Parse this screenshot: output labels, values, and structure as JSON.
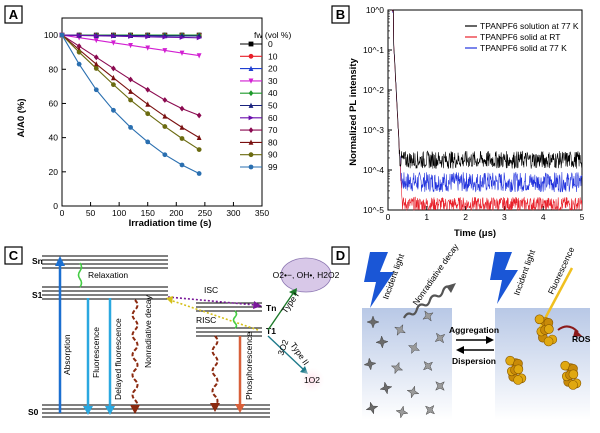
{
  "figure": {
    "panelA": {
      "label": "A",
      "chart_data": {
        "type": "line",
        "xlabel": "Irradiation time (s)",
        "ylabel": "A/A0 (%)",
        "xlim": [
          0,
          350
        ],
        "ylim": [
          0,
          110
        ],
        "xticks": [
          0,
          50,
          100,
          150,
          200,
          250,
          300,
          350
        ],
        "yticks": [
          0,
          20,
          40,
          60,
          80,
          100
        ],
        "legend_title": "fw (vol %)",
        "legend_position": "top-right",
        "x": [
          0,
          30,
          60,
          90,
          120,
          150,
          180,
          210,
          240
        ],
        "series": [
          {
            "name": "0",
            "color": "#000000",
            "marker": "square",
            "values": [
              100,
              100,
              100,
              100,
              100,
              100,
              100,
              100,
              100
            ]
          },
          {
            "name": "10",
            "color": "#e8202a",
            "marker": "circle",
            "values": [
              100,
              100,
              100,
              100,
              100,
              100,
              100,
              100,
              100
            ]
          },
          {
            "name": "20",
            "color": "#1f3fd1",
            "marker": "triangle",
            "values": [
              100,
              99.9,
              99.8,
              99.8,
              99.7,
              99.7,
              99.6,
              99.6,
              99.5
            ]
          },
          {
            "name": "30",
            "color": "#d21fd2",
            "marker": "tridown",
            "values": [
              100,
              98.5,
              97,
              95.5,
              94,
              92.5,
              91,
              89.5,
              88
            ]
          },
          {
            "name": "40",
            "color": "#1e9a2b",
            "marker": "diamond",
            "values": [
              100,
              100,
              100,
              100,
              100,
              100,
              100,
              100,
              100
            ]
          },
          {
            "name": "50",
            "color": "#1a237e",
            "marker": "triangle",
            "values": [
              100,
              99.9,
              99.8,
              99.8,
              99.7,
              99.7,
              99.6,
              99.6,
              99.5
            ]
          },
          {
            "name": "60",
            "color": "#6a0dad",
            "marker": "triright",
            "values": [
              100,
              99.8,
              99.6,
              99.4,
              99.2,
              99,
              98.8,
              98.6,
              98.4
            ]
          },
          {
            "name": "70",
            "color": "#8b0a50",
            "marker": "diamond",
            "values": [
              100,
              93.5,
              87,
              80.5,
              74,
              68,
              62,
              57,
              53
            ]
          },
          {
            "name": "80",
            "color": "#7a1010",
            "marker": "triangle",
            "values": [
              100,
              91.5,
              83,
              75,
              67,
              59.5,
              52.5,
              46,
              40
            ]
          },
          {
            "name": "90",
            "color": "#6b6b10",
            "marker": "circle",
            "values": [
              100,
              90,
              80.5,
              71,
              62,
              54,
              46.5,
              39.5,
              33
            ]
          },
          {
            "name": "99",
            "color": "#2a6fb0",
            "marker": "circle",
            "values": [
              100,
              83,
              68,
              56,
              46,
              37.5,
              30,
              24,
              19
            ]
          }
        ]
      }
    },
    "panelB": {
      "label": "B",
      "chart_data": {
        "type": "line",
        "xlabel": "Time (μs)",
        "ylabel": "Normalized PL intensity",
        "xlim": [
          0,
          5
        ],
        "xticks": [
          0,
          1,
          2,
          3,
          4,
          5
        ],
        "yscale": "log",
        "ylim": [
          1e-05,
          1
        ],
        "yticks": [
          "10^0",
          "10^-1",
          "10^-2",
          "10^-3",
          "10^-4",
          "10^-5"
        ],
        "legend_position": "top-right",
        "series": [
          {
            "name": "TPANPF6 solution at 77 K",
            "color": "#000000",
            "tail_level": 0.00018,
            "noise_log": 0.22
          },
          {
            "name": "TPANPF6 solid at RT",
            "color": "#e8202a",
            "tail_level": 1.4e-05,
            "noise_log": 0.18
          },
          {
            "name": "TPANPF6 solid at 77 K",
            "color": "#2233dd",
            "tail_level": 5e-05,
            "noise_log": 0.25
          }
        ]
      }
    },
    "panelC": {
      "label": "C",
      "levels": {
        "s0": "S0",
        "s1": "S1",
        "sn": "Sn",
        "t1": "T1",
        "tn": "Tn"
      },
      "processes": {
        "relaxation": "Relaxation",
        "isc": "ISC",
        "risc": "RISC",
        "absorption": "Absorption",
        "fluorescence": "Fluorescence",
        "delayed_fluorescence": "Delayed fluorescence",
        "nonradiative_decay": "Nonradiative decay",
        "phosphorescence": "Phosphorescence",
        "type_i": "Type I",
        "type_ii": "Type II"
      },
      "ros_species": "O2•−, OH•, H2O2",
      "singlet_oxygen": "1O2",
      "triplet_oxygen": "3O2",
      "colors": {
        "absorption": "#1b6fd0",
        "fluorescence": "#2aa8e0",
        "decay": "#8b2a10",
        "phos": "#d8603a",
        "isc": "#7a1a9a",
        "risc": "#d4c01a",
        "relax": "#44cc44"
      }
    },
    "panelD": {
      "label": "D",
      "texts": {
        "incident_light_left": "Incident light",
        "nonradiative_decay": "Nonradiative decay",
        "incident_light_right": "Incident light",
        "fluorescence": "Fluorescence",
        "ros": "ROS",
        "aggregation": "Aggregation",
        "dispersion": "Dispersion"
      }
    }
  }
}
